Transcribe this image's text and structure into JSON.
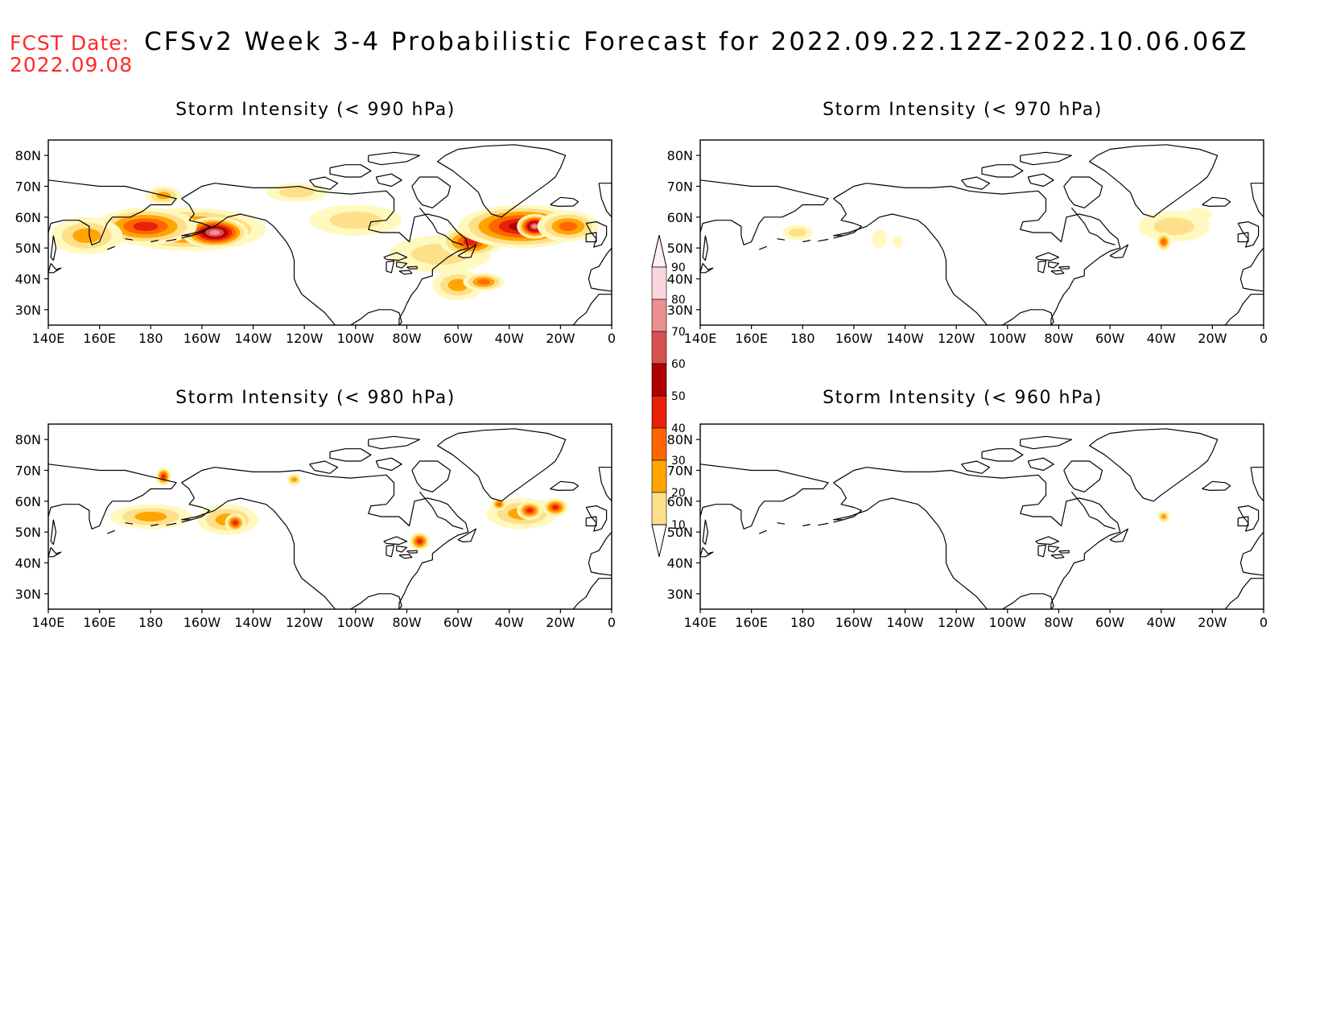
{
  "header": {
    "fcst_label": "FCST Date:",
    "fcst_date": "2022.09.08",
    "title": "CFSv2 Week 3-4 Probabilistic Forecast for 2022.09.22.12Z-2022.10.06.06Z"
  },
  "axes": {
    "x_tick_labels": [
      "140E",
      "160E",
      "180",
      "160W",
      "140W",
      "120W",
      "100W",
      "80W",
      "60W",
      "40W",
      "20W",
      "0"
    ],
    "y_tick_labels": [
      "80N",
      "70N",
      "60N",
      "50N",
      "40N",
      "30N"
    ],
    "lon_range_east": [
      140,
      360
    ],
    "lat_range": [
      25,
      85
    ]
  },
  "colorbar": {
    "levels": [
      10,
      20,
      30,
      40,
      50,
      60,
      70,
      80,
      90
    ],
    "labels": [
      "10",
      "20",
      "30",
      "40",
      "50",
      "60",
      "70",
      "80",
      "90"
    ],
    "colors": [
      "#fff9c0",
      "#ffe08a",
      "#ffa500",
      "#ff6600",
      "#e8200a",
      "#b00000",
      "#d85050",
      "#ea9090",
      "#fbd6dc",
      "#fff0f4"
    ]
  },
  "panels": [
    {
      "id": "p990",
      "title": "Storm Intensity (< 990 hPa)",
      "blobs": [
        {
          "lon": 195,
          "lat": 56,
          "rlon": 30,
          "rlat": 7,
          "p": 58
        },
        {
          "lon": 205,
          "lat": 55,
          "rlon": 13,
          "rlat": 5,
          "p": 82
        },
        {
          "lon": 178,
          "lat": 57,
          "rlon": 20,
          "rlat": 6,
          "p": 52
        },
        {
          "lon": 155,
          "lat": 54,
          "rlon": 14,
          "rlat": 6,
          "p": 38
        },
        {
          "lon": 185,
          "lat": 67,
          "rlon": 7,
          "rlat": 3,
          "p": 32
        },
        {
          "lon": 237,
          "lat": 68,
          "rlon": 12,
          "rlat": 3,
          "p": 22
        },
        {
          "lon": 260,
          "lat": 59,
          "rlon": 18,
          "rlat": 5,
          "p": 22
        },
        {
          "lon": 293,
          "lat": 48,
          "rlon": 20,
          "rlat": 6,
          "p": 28
        },
        {
          "lon": 305,
          "lat": 52,
          "rlon": 12,
          "rlat": 5,
          "p": 55
        },
        {
          "lon": 325,
          "lat": 57,
          "rlon": 25,
          "rlat": 7,
          "p": 60
        },
        {
          "lon": 330,
          "lat": 57,
          "rlon": 7,
          "rlat": 4,
          "p": 82
        },
        {
          "lon": 343,
          "lat": 57,
          "rlon": 12,
          "rlat": 5,
          "p": 48
        },
        {
          "lon": 300,
          "lat": 38,
          "rlon": 10,
          "rlat": 5,
          "p": 30
        },
        {
          "lon": 310,
          "lat": 39,
          "rlon": 8,
          "rlat": 3,
          "p": 45
        }
      ]
    },
    {
      "id": "p970",
      "title": "Storm Intensity (< 970 hPa)",
      "blobs": [
        {
          "lon": 178,
          "lat": 55,
          "rlon": 6,
          "rlat": 2.5,
          "p": 22
        },
        {
          "lon": 210,
          "lat": 53,
          "rlon": 3,
          "rlat": 3,
          "p": 18
        },
        {
          "lon": 217,
          "lat": 52,
          "rlon": 2,
          "rlat": 2,
          "p": 14
        },
        {
          "lon": 325,
          "lat": 57,
          "rlon": 14,
          "rlat": 5,
          "p": 24
        },
        {
          "lon": 321,
          "lat": 52,
          "rlon": 3,
          "rlat": 3,
          "p": 45
        },
        {
          "lon": 335,
          "lat": 61,
          "rlon": 5,
          "rlat": 2,
          "p": 18
        }
      ]
    },
    {
      "id": "p980",
      "title": "Storm Intensity (< 980 hPa)",
      "blobs": [
        {
          "lon": 180,
          "lat": 55,
          "rlon": 16,
          "rlat": 4,
          "p": 30
        },
        {
          "lon": 210,
          "lat": 54,
          "rlon": 12,
          "rlat": 5,
          "p": 30
        },
        {
          "lon": 213,
          "lat": 53,
          "rlon": 4,
          "rlat": 3,
          "p": 55
        },
        {
          "lon": 185,
          "lat": 68,
          "rlon": 3,
          "rlat": 3,
          "p": 50
        },
        {
          "lon": 236,
          "lat": 67,
          "rlon": 3,
          "rlat": 2,
          "p": 32
        },
        {
          "lon": 285,
          "lat": 47,
          "rlon": 4,
          "rlat": 3,
          "p": 55
        },
        {
          "lon": 325,
          "lat": 56,
          "rlon": 14,
          "rlat": 5,
          "p": 32
        },
        {
          "lon": 328,
          "lat": 57,
          "rlon": 5,
          "rlat": 3,
          "p": 55
        },
        {
          "lon": 338,
          "lat": 58,
          "rlon": 5,
          "rlat": 3,
          "p": 50
        },
        {
          "lon": 316,
          "lat": 59,
          "rlon": 3,
          "rlat": 2,
          "p": 45
        }
      ]
    },
    {
      "id": "p960",
      "title": "Storm Intensity (< 960 hPa)",
      "blobs": [
        {
          "lon": 321,
          "lat": 55,
          "rlon": 2.5,
          "rlat": 2,
          "p": 32
        }
      ]
    }
  ]
}
